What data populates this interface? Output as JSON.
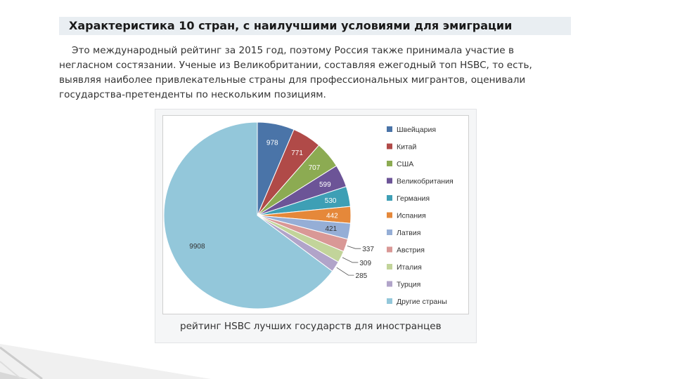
{
  "page": {
    "title": "Характеристика 10 стран, с наилучшими условиями для эмиграции",
    "intro": "Это международный рейтинг за 2015 год, поэтому Россия также принимала участие в негласном состязании. Ученые из Великобритании, составляя ежегодный топ HSBC, то есть, выявляя наиболее привлекательные страны для профессиональных мигрантов, оценивали государства-претенденты по нескольким позициям.",
    "caption": "рейтинг HSBC лучших государств для иностранцев"
  },
  "chart_data": {
    "type": "pie",
    "title": "",
    "legend_position": "right",
    "categories": [
      "Швейцария",
      "Китай",
      "США",
      "Великобритания",
      "Германия",
      "Испания",
      "Латвия",
      "Австрия",
      "Италия",
      "Турция",
      "Другие страны"
    ],
    "values": [
      978,
      771,
      707,
      599,
      530,
      442,
      421,
      337,
      309,
      285,
      9908
    ],
    "colors": [
      "#4a74a8",
      "#b04a48",
      "#8cab52",
      "#6c5497",
      "#3e9fb5",
      "#e5883a",
      "#95aed6",
      "#d99896",
      "#c2d49a",
      "#b1a4c9",
      "#93c7da"
    ]
  }
}
